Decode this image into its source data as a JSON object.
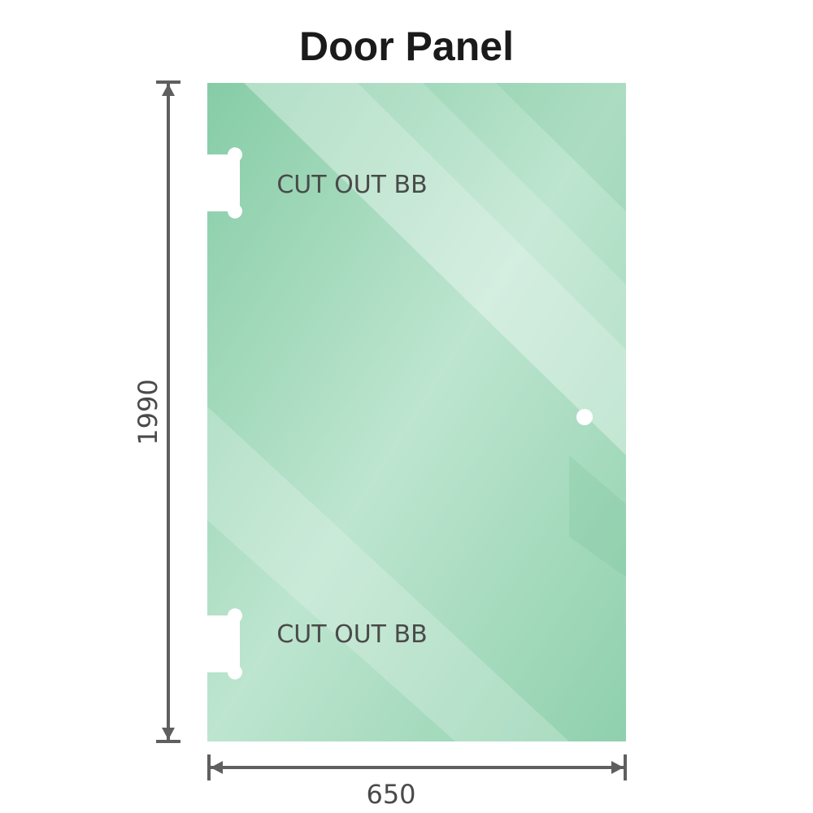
{
  "title": "Door Panel",
  "dimensions": {
    "height": "1990",
    "width": "650"
  },
  "cutouts": [
    {
      "label": "CUT OUT BB"
    },
    {
      "label": "CUT OUT BB"
    }
  ],
  "colors": {
    "glass": "#8fd0ad",
    "glass_light": "#b9e3cc",
    "dimension_line": "#5f5f5f",
    "text": "#4a4a4a"
  }
}
